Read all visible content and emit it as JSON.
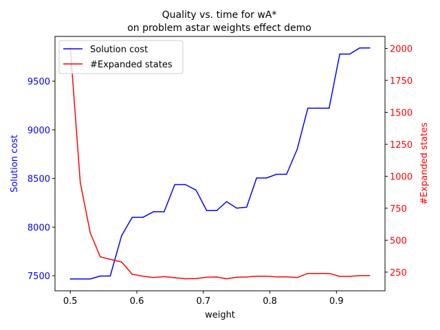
{
  "chart_data": {
    "type": "line",
    "title": "Quality vs. time for wA*",
    "subtitle": "on problem astar weights effect demo",
    "xlabel": "weight",
    "xlim": [
      0.477,
      0.973
    ],
    "xticks": [
      0.5,
      0.6,
      0.7,
      0.8,
      0.9
    ],
    "xtick_labels": [
      "0.5",
      "0.6",
      "0.7",
      "0.8",
      "0.9"
    ],
    "legend_position": "top-left",
    "grid": false,
    "y_left": {
      "label": "Solution cost",
      "color": "#0000ff",
      "ylim": [
        7345,
        9960
      ],
      "ticks": [
        7500,
        8000,
        8500,
        9000,
        9500
      ],
      "tick_labels": [
        "7500",
        "8000",
        "8500",
        "9000",
        "9500"
      ]
    },
    "y_right": {
      "label": "#Expanded states",
      "color": "#ff0000",
      "ylim": [
        104,
        2094
      ],
      "ticks": [
        250,
        500,
        750,
        1000,
        1250,
        1500,
        1750,
        2000
      ],
      "tick_labels": [
        "250",
        "500",
        "750",
        "1000",
        "1250",
        "1500",
        "1750",
        "2000"
      ]
    },
    "x": [
      0.5,
      0.515,
      0.53,
      0.545,
      0.56,
      0.577,
      0.593,
      0.609,
      0.625,
      0.641,
      0.657,
      0.673,
      0.689,
      0.705,
      0.72,
      0.735,
      0.75,
      0.765,
      0.78,
      0.795,
      0.81,
      0.825,
      0.841,
      0.857,
      0.873,
      0.889,
      0.905,
      0.92,
      0.935,
      0.95
    ],
    "series": [
      {
        "name": "Solution cost",
        "axis": "left",
        "color": "#0000ff",
        "values": [
          7467,
          7467,
          7467,
          7497,
          7497,
          7910,
          8100,
          8100,
          8158,
          8158,
          8437,
          8437,
          8380,
          8170,
          8170,
          8262,
          8195,
          8205,
          8505,
          8505,
          8543,
          8543,
          8800,
          9222,
          9222,
          9222,
          9779,
          9779,
          9842,
          9842
        ]
      },
      {
        "name": "#Expanded states",
        "axis": "right",
        "color": "#ff0000",
        "values": [
          2008,
          950,
          557,
          370,
          350,
          330,
          234,
          218,
          208,
          215,
          207,
          198,
          200,
          210,
          212,
          198,
          210,
          212,
          218,
          218,
          213,
          213,
          208,
          240,
          240,
          240,
          217,
          217,
          223,
          223
        ]
      }
    ]
  }
}
